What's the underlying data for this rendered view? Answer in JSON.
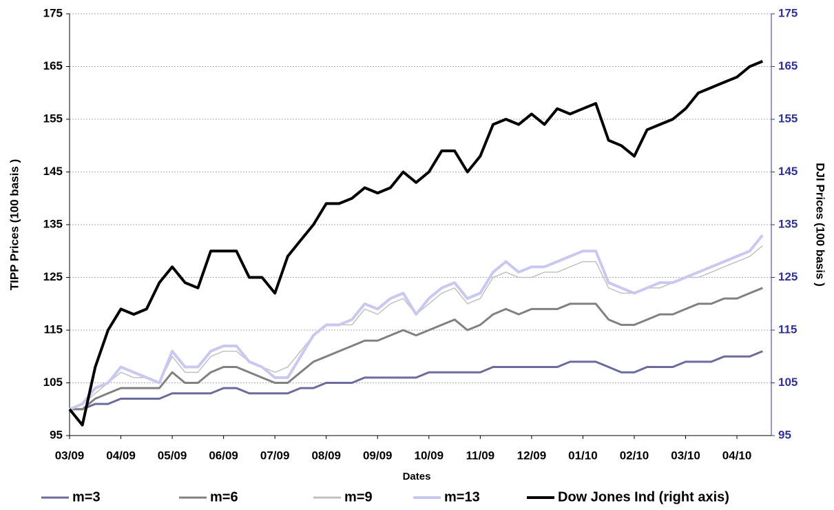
{
  "chart_data": {
    "type": "line",
    "y_label": "TIPP Prices  (100 basis )",
    "y2_label": "DJI Prices  (100 basis )",
    "x_label": "Dates",
    "x": [
      0,
      0.25,
      0.5,
      0.75,
      1,
      1.25,
      1.5,
      1.75,
      2,
      2.25,
      2.5,
      2.75,
      3,
      3.25,
      3.5,
      3.75,
      4,
      4.25,
      4.5,
      4.75,
      5,
      5.25,
      5.5,
      5.75,
      6,
      6.25,
      6.5,
      6.75,
      7,
      7.25,
      7.5,
      7.75,
      8,
      8.25,
      8.5,
      8.75,
      9,
      9.25,
      9.5,
      9.75,
      10,
      10.25,
      10.5,
      10.75,
      11,
      11.25,
      11.5,
      11.75,
      12,
      12.25,
      12.5,
      12.75,
      13,
      13.25,
      13.5
    ],
    "xlim": [
      0,
      13.67
    ],
    "xticks": [
      {
        "value": 0,
        "label": "03/09"
      },
      {
        "value": 1,
        "label": "04/09"
      },
      {
        "value": 2,
        "label": "05/09"
      },
      {
        "value": 3,
        "label": "06/09"
      },
      {
        "value": 4,
        "label": "07/09"
      },
      {
        "value": 5,
        "label": "08/09"
      },
      {
        "value": 6,
        "label": "09/09"
      },
      {
        "value": 7,
        "label": "10/09"
      },
      {
        "value": 8,
        "label": "11/09"
      },
      {
        "value": 9,
        "label": "12/09"
      },
      {
        "value": 10,
        "label": "01/10"
      },
      {
        "value": 11,
        "label": "02/10"
      },
      {
        "value": 12,
        "label": "03/10"
      },
      {
        "value": 13,
        "label": "04/10"
      }
    ],
    "ylim": [
      95,
      175
    ],
    "yticks": [
      95,
      105,
      115,
      125,
      135,
      145,
      155,
      165,
      175
    ],
    "y2lim": [
      95,
      175
    ],
    "y2ticks": [
      95,
      105,
      115,
      125,
      135,
      145,
      155,
      165,
      175
    ],
    "grid": true,
    "series": [
      {
        "name": "m=3",
        "color": "#6a6a9c",
        "values": [
          100,
          100,
          101,
          101,
          102,
          102,
          102,
          102,
          103,
          103,
          103,
          103,
          104,
          104,
          103,
          103,
          103,
          103,
          104,
          104,
          105,
          105,
          105,
          106,
          106,
          106,
          106,
          106,
          107,
          107,
          107,
          107,
          107,
          108,
          108,
          108,
          108,
          108,
          108,
          109,
          109,
          109,
          108,
          107,
          107,
          108,
          108,
          108,
          109,
          109,
          109,
          110,
          110,
          110,
          111
        ]
      },
      {
        "name": "m=6",
        "color": "#808080",
        "values": [
          100,
          100,
          102,
          103,
          104,
          104,
          104,
          104,
          107,
          105,
          105,
          107,
          108,
          108,
          107,
          106,
          105,
          105,
          107,
          109,
          110,
          111,
          112,
          113,
          113,
          114,
          115,
          114,
          115,
          116,
          117,
          115,
          116,
          118,
          119,
          118,
          119,
          119,
          119,
          120,
          120,
          120,
          117,
          116,
          116,
          117,
          118,
          118,
          119,
          120,
          120,
          121,
          121,
          122,
          123
        ]
      },
      {
        "name": "m=9",
        "color": "#c0c0c0",
        "values": [
          100,
          101,
          103,
          105,
          107,
          106,
          106,
          105,
          110,
          107,
          107,
          110,
          111,
          111,
          109,
          108,
          107,
          108,
          111,
          114,
          116,
          116,
          116,
          119,
          118,
          120,
          121,
          118,
          120,
          122,
          123,
          120,
          121,
          125,
          126,
          125,
          125,
          126,
          126,
          127,
          128,
          128,
          123,
          122,
          122,
          123,
          123,
          124,
          125,
          125,
          126,
          127,
          128,
          129,
          131
        ]
      },
      {
        "name": "m=13",
        "color": "#c8c8f0",
        "values": [
          100,
          101,
          104,
          105,
          108,
          107,
          106,
          105,
          111,
          108,
          108,
          111,
          112,
          112,
          109,
          108,
          106,
          106,
          110,
          114,
          116,
          116,
          117,
          120,
          119,
          121,
          122,
          118,
          121,
          123,
          124,
          121,
          122,
          126,
          128,
          126,
          127,
          127,
          128,
          129,
          130,
          130,
          124,
          123,
          122,
          123,
          124,
          124,
          125,
          126,
          127,
          128,
          129,
          130,
          133
        ]
      },
      {
        "name": "Dow Jones Ind (right axis)",
        "color": "#000000",
        "axis": "y2",
        "values": [
          100,
          97,
          108,
          115,
          119,
          118,
          119,
          124,
          127,
          124,
          123,
          130,
          130,
          130,
          125,
          125,
          122,
          129,
          132,
          135,
          139,
          139,
          140,
          142,
          141,
          142,
          145,
          143,
          145,
          149,
          149,
          145,
          148,
          154,
          155,
          154,
          156,
          154,
          157,
          156,
          157,
          158,
          151,
          150,
          148,
          153,
          154,
          155,
          157,
          160,
          161,
          162,
          163,
          165,
          166
        ]
      }
    ]
  }
}
